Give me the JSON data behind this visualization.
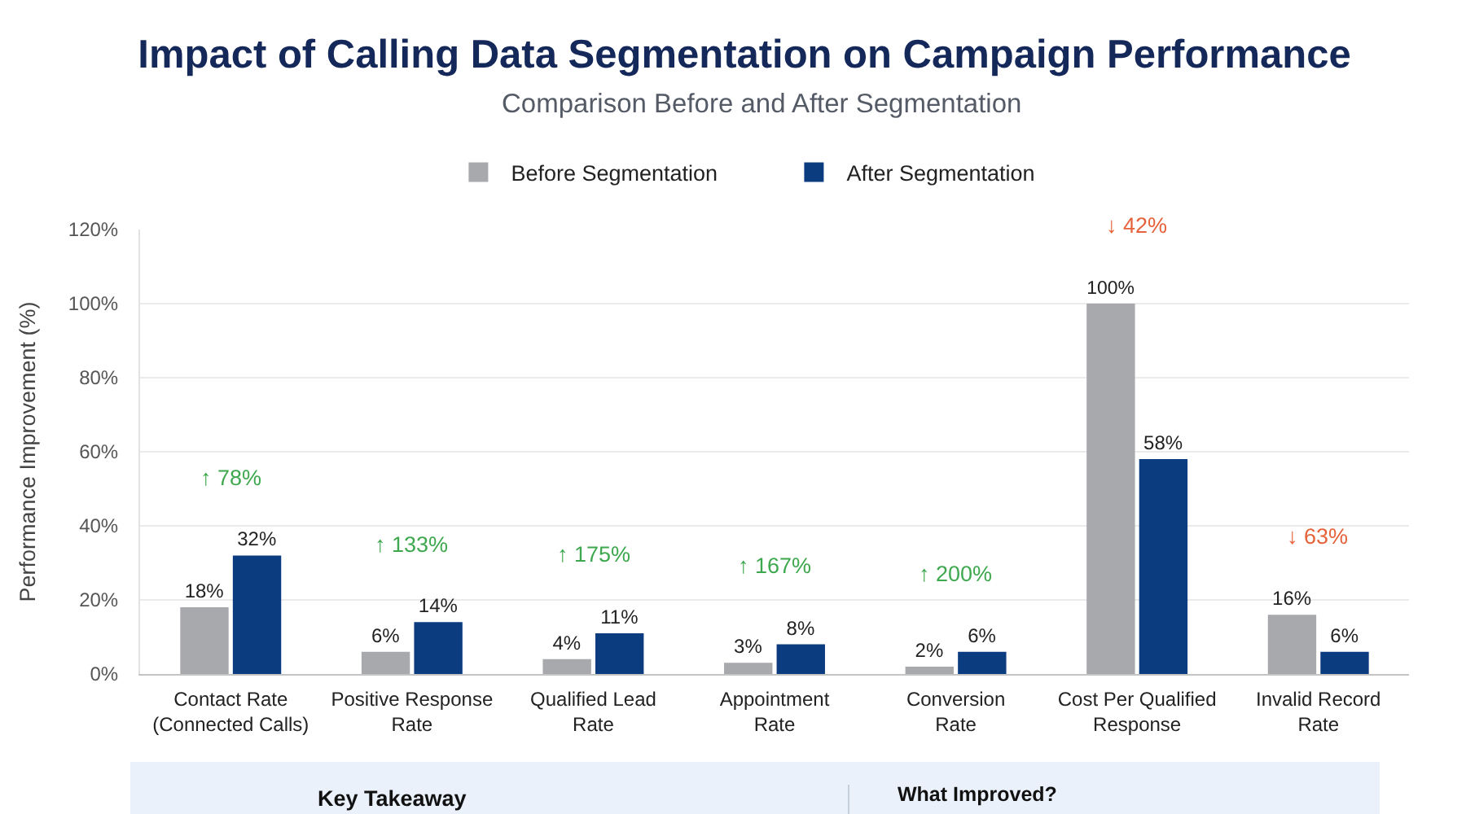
{
  "chart_data": {
    "type": "bar",
    "title": "Impact of Calling Data Segmentation on Campaign Performance",
    "subtitle": "Comparison Before and After Segmentation",
    "ylabel": "Performance Improvement (%)",
    "categories": [
      "Contact Rate\n(Connected Calls)",
      "Positive Response\nRate",
      "Qualified Lead\nRate",
      "Appointment\nRate",
      "Conversion\nRate",
      "Cost Per Qualified\nResponse",
      "Invalid Record\nRate"
    ],
    "series": [
      {
        "name": "Before Segmentation",
        "color": "#a7a9ac",
        "values": [
          18,
          6,
          4,
          3,
          2,
          100,
          16
        ],
        "value_labels": [
          "18%",
          "6%",
          "4%",
          "3%",
          "2%",
          "100%",
          "16%"
        ]
      },
      {
        "name": "After Segmentation",
        "color": "#0c3c80",
        "values": [
          32,
          14,
          11,
          8,
          6,
          58,
          6
        ],
        "value_labels": [
          "32%",
          "14%",
          "11%",
          "8%",
          "6%",
          "58%",
          "6%"
        ]
      }
    ],
    "ylim": [
      0,
      120
    ],
    "yticks": [
      {
        "value": 0,
        "label": "0%"
      },
      {
        "value": 20,
        "label": "20%"
      },
      {
        "value": 40,
        "label": "40%"
      },
      {
        "value": 60,
        "label": "60%"
      },
      {
        "value": 80,
        "label": "80%"
      },
      {
        "value": 100,
        "label": "100%"
      },
      {
        "value": 120,
        "label": "120%"
      }
    ],
    "grid": "y",
    "legend": "top",
    "annotations": [
      "↑ 78%",
      "↑ 133%",
      "↑ 175%",
      "↑ 167%",
      "↑ 200%",
      "↓ 42%",
      "↓ 63%",
      "Key Takeaway",
      "What Improved?"
    ]
  }
}
